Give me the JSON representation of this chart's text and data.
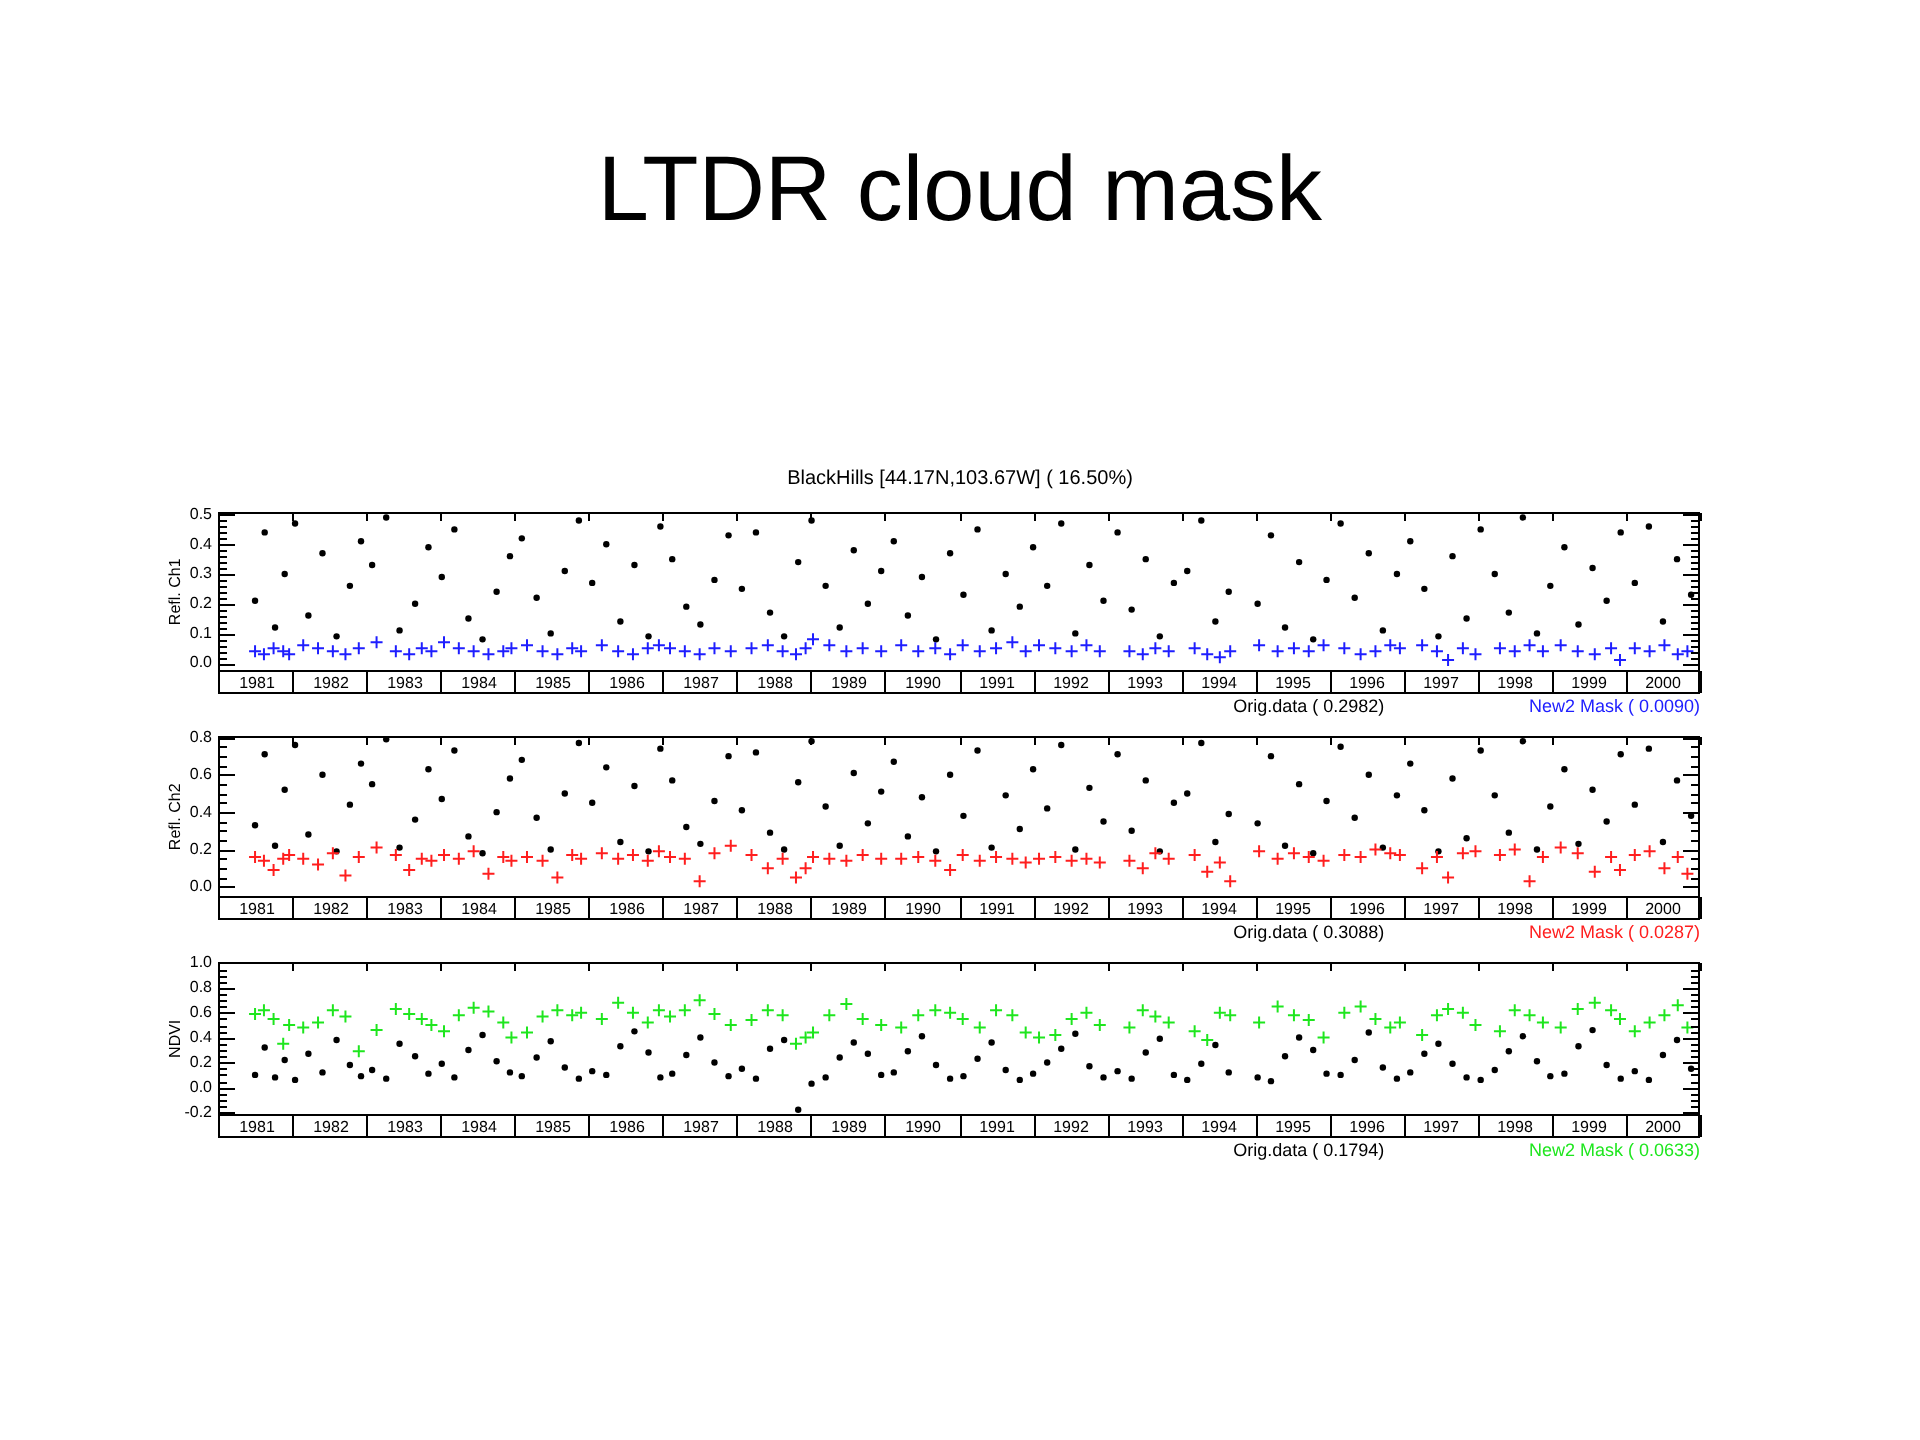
{
  "chart_data": [
    {
      "type": "scatter",
      "title": "LTDR cloud mask",
      "subtitle": "BlackHills [44.17N,103.67W] ( 16.50%)",
      "ylabel": "Refl. Ch1",
      "legend": "bottom",
      "xlim": [
        1981,
        2001
      ],
      "xticks": [
        {
          "value": 1981,
          "label": null
        },
        {
          "value": 1981.5,
          "label": "1981"
        },
        {
          "value": 1982,
          "label": null
        },
        {
          "value": 1982.5,
          "label": "1982"
        },
        {
          "value": 1983,
          "label": null
        },
        {
          "value": 1983.5,
          "label": "1983"
        },
        {
          "value": 1984,
          "label": null
        },
        {
          "value": 1984.5,
          "label": "1984"
        },
        {
          "value": 1985,
          "label": null
        },
        {
          "value": 1985.5,
          "label": "1985"
        },
        {
          "value": 1986,
          "label": null
        },
        {
          "value": 1986.5,
          "label": "1986"
        },
        {
          "value": 1987,
          "label": null
        },
        {
          "value": 1987.5,
          "label": "1987"
        },
        {
          "value": 1988,
          "label": null
        },
        {
          "value": 1988.5,
          "label": "1988"
        },
        {
          "value": 1989,
          "label": null
        },
        {
          "value": 1989.5,
          "label": "1989"
        },
        {
          "value": 1990,
          "label": null
        },
        {
          "value": 1990.5,
          "label": "1990"
        },
        {
          "value": 1991,
          "label": null
        },
        {
          "value": 1991.5,
          "label": "1991"
        },
        {
          "value": 1992,
          "label": null
        },
        {
          "value": 1992.5,
          "label": "1992"
        },
        {
          "value": 1993,
          "label": null
        },
        {
          "value": 1993.5,
          "label": "1993"
        },
        {
          "value": 1994,
          "label": null
        },
        {
          "value": 1994.5,
          "label": "1994"
        },
        {
          "value": 1995,
          "label": null
        },
        {
          "value": 1995.5,
          "label": "1995"
        },
        {
          "value": 1996,
          "label": null
        },
        {
          "value": 1996.5,
          "label": "1996"
        },
        {
          "value": 1997,
          "label": null
        },
        {
          "value": 1997.5,
          "label": "1997"
        },
        {
          "value": 1998,
          "label": null
        },
        {
          "value": 1998.5,
          "label": "1998"
        },
        {
          "value": 1999,
          "label": null
        },
        {
          "value": 1999.5,
          "label": "1999"
        },
        {
          "value": 2000,
          "label": null
        },
        {
          "value": 2000.5,
          "label": "2000"
        },
        {
          "value": 2001,
          "label": null
        }
      ],
      "ylim": [
        -0.03,
        0.51
      ],
      "yticks": [
        {
          "value": 0,
          "label": "0.0"
        },
        {
          "value": 0.02,
          "label": null
        },
        {
          "value": 0.04,
          "label": null
        },
        {
          "value": 0.06,
          "label": null
        },
        {
          "value": 0.08,
          "label": null
        },
        0.1,
        {
          "value": 0.12,
          "label": null
        },
        {
          "value": 0.14,
          "label": null
        },
        {
          "value": 0.16,
          "label": null
        },
        {
          "value": 0.18,
          "label": null
        },
        0.2,
        {
          "value": 0.22,
          "label": null
        },
        {
          "value": 0.24,
          "label": null
        },
        {
          "value": 0.26,
          "label": null
        },
        {
          "value": 0.28,
          "label": null
        },
        0.3,
        {
          "value": 0.32,
          "label": null
        },
        {
          "value": 0.34,
          "label": null
        },
        {
          "value": 0.36,
          "label": null
        },
        {
          "value": 0.38,
          "label": null
        },
        0.4,
        {
          "value": 0.42,
          "label": null
        },
        {
          "value": 0.44,
          "label": null
        },
        {
          "value": 0.46,
          "label": null
        },
        {
          "value": 0.48,
          "label": null
        },
        0.5
      ],
      "series": [
        {
          "name": "Orig.data ( 0.2982)",
          "color": "#000000",
          "marker": "circle",
          "x": [
            1981.5,
            1981.63,
            1981.77,
            1981.9,
            1982.04,
            1982.22,
            1982.41,
            1982.6,
            1982.78,
            1982.93,
            1983.08,
            1983.27,
            1983.45,
            1983.66,
            1983.84,
            1984.02,
            1984.19,
            1984.38,
            1984.57,
            1984.76,
            1984.94,
            1985.1,
            1985.3,
            1985.49,
            1985.68,
            1985.87,
            1986.05,
            1986.24,
            1986.43,
            1986.62,
            1986.81,
            1986.97,
            1987.13,
            1987.32,
            1987.51,
            1987.7,
            1987.89,
            1988.07,
            1988.26,
            1988.45,
            1988.64,
            1988.83,
            1989.01,
            1989.2,
            1989.39,
            1989.58,
            1989.77,
            1989.95,
            1990.12,
            1990.31,
            1990.5,
            1990.69,
            1990.88,
            1991.06,
            1991.25,
            1991.44,
            1991.63,
            1991.82,
            1992.0,
            1992.19,
            1992.38,
            1992.57,
            1992.76,
            1992.95,
            1993.14,
            1993.33,
            1993.52,
            1993.71,
            1993.9,
            1994.08,
            1994.27,
            1994.46,
            1994.64,
            1995.03,
            1995.21,
            1995.4,
            1995.59,
            1995.78,
            1995.96,
            1996.15,
            1996.34,
            1996.53,
            1996.72,
            1996.91,
            1997.09,
            1997.28,
            1997.47,
            1997.66,
            1997.85,
            1998.04,
            1998.23,
            1998.42,
            1998.61,
            1998.8,
            1998.98,
            1999.17,
            1999.36,
            1999.55,
            1999.74,
            1999.93,
            2000.12,
            2000.31,
            2000.5,
            2000.69,
            2000.88
          ],
          "values": [
            0.21,
            0.44,
            0.12,
            0.3,
            0.47,
            0.16,
            0.37,
            0.09,
            0.26,
            0.41,
            0.33,
            0.49,
            0.11,
            0.2,
            0.39,
            0.29,
            0.45,
            0.15,
            0.08,
            0.24,
            0.36,
            0.42,
            0.22,
            0.1,
            0.31,
            0.48,
            0.27,
            0.4,
            0.14,
            0.33,
            0.09,
            0.46,
            0.35,
            0.19,
            0.13,
            0.28,
            0.43,
            0.25,
            0.44,
            0.17,
            0.09,
            0.34,
            0.48,
            0.26,
            0.12,
            0.38,
            0.2,
            0.31,
            0.41,
            0.16,
            0.29,
            0.08,
            0.37,
            0.23,
            0.45,
            0.11,
            0.3,
            0.19,
            0.39,
            0.26,
            0.47,
            0.1,
            0.33,
            0.21,
            0.44,
            0.18,
            0.35,
            0.09,
            0.27,
            0.31,
            0.48,
            0.14,
            0.24,
            0.2,
            0.43,
            0.12,
            0.34,
            0.08,
            0.28,
            0.47,
            0.22,
            0.37,
            0.11,
            0.3,
            0.41,
            0.25,
            0.09,
            0.36,
            0.15,
            0.45,
            0.3,
            0.17,
            0.49,
            0.1,
            0.26,
            0.39,
            0.13,
            0.32,
            0.21,
            0.44,
            0.27,
            0.46,
            0.14,
            0.35,
            0.23
          ]
        },
        {
          "name": "New2 Mask ( 0.0090)",
          "color": "#1e1eff",
          "marker": "cross",
          "x": [
            1981.5,
            1981.62,
            1981.75,
            1981.88,
            1981.96,
            1982.15,
            1982.35,
            1982.55,
            1982.72,
            1982.9,
            1983.14,
            1983.4,
            1983.58,
            1983.75,
            1983.88,
            1984.05,
            1984.25,
            1984.45,
            1984.65,
            1984.85,
            1984.96,
            1985.17,
            1985.38,
            1985.58,
            1985.78,
            1985.9,
            1986.18,
            1986.4,
            1986.6,
            1986.8,
            1986.95,
            1987.1,
            1987.3,
            1987.5,
            1987.7,
            1987.92,
            1988.2,
            1988.42,
            1988.62,
            1988.8,
            1988.93,
            1989.03,
            1989.25,
            1989.48,
            1989.7,
            1989.95,
            1990.22,
            1990.45,
            1990.68,
            1990.88,
            1991.05,
            1991.28,
            1991.5,
            1991.72,
            1991.9,
            1992.08,
            1992.3,
            1992.52,
            1992.72,
            1992.9,
            1993.3,
            1993.48,
            1993.65,
            1993.83,
            1994.18,
            1994.35,
            1994.52,
            1994.66,
            1995.05,
            1995.3,
            1995.52,
            1995.72,
            1995.92,
            1996.2,
            1996.42,
            1996.62,
            1996.82,
            1996.95,
            1997.25,
            1997.45,
            1997.6,
            1997.8,
            1997.97,
            1998.3,
            1998.5,
            1998.7,
            1998.88,
            1999.12,
            1999.35,
            1999.58,
            1999.8,
            1999.92,
            2000.12,
            2000.32,
            2000.52,
            2000.7,
            2000.83
          ],
          "values": [
            0.04,
            0.03,
            0.05,
            0.04,
            0.03,
            0.06,
            0.05,
            0.04,
            0.03,
            0.05,
            0.07,
            0.04,
            0.03,
            0.05,
            0.04,
            0.07,
            0.05,
            0.04,
            0.03,
            0.04,
            0.05,
            0.06,
            0.04,
            0.03,
            0.05,
            0.04,
            0.06,
            0.04,
            0.03,
            0.05,
            0.06,
            0.05,
            0.04,
            0.03,
            0.05,
            0.04,
            0.05,
            0.06,
            0.04,
            0.03,
            0.05,
            0.08,
            0.06,
            0.04,
            0.05,
            0.04,
            0.06,
            0.04,
            0.05,
            0.03,
            0.06,
            0.04,
            0.05,
            0.07,
            0.04,
            0.06,
            0.05,
            0.04,
            0.06,
            0.04,
            0.04,
            0.03,
            0.05,
            0.04,
            0.05,
            0.03,
            0.02,
            0.04,
            0.06,
            0.04,
            0.05,
            0.04,
            0.06,
            0.05,
            0.03,
            0.04,
            0.06,
            0.05,
            0.06,
            0.04,
            0.01,
            0.05,
            0.03,
            0.05,
            0.04,
            0.06,
            0.04,
            0.06,
            0.04,
            0.03,
            0.05,
            0.01,
            0.05,
            0.04,
            0.06,
            0.03,
            0.04
          ]
        }
      ]
    },
    {
      "type": "scatter",
      "ylabel": "Refl. Ch2",
      "legend": "bottom",
      "xlim": [
        1981,
        2001
      ],
      "xticks": [
        {
          "value": 1981,
          "label": null
        },
        {
          "value": 1981.5,
          "label": "1981"
        },
        {
          "value": 1982,
          "label": null
        },
        {
          "value": 1982.5,
          "label": "1982"
        },
        {
          "value": 1983,
          "label": null
        },
        {
          "value": 1983.5,
          "label": "1983"
        },
        {
          "value": 1984,
          "label": null
        },
        {
          "value": 1984.5,
          "label": "1984"
        },
        {
          "value": 1985,
          "label": null
        },
        {
          "value": 1985.5,
          "label": "1985"
        },
        {
          "value": 1986,
          "label": null
        },
        {
          "value": 1986.5,
          "label": "1986"
        },
        {
          "value": 1987,
          "label": null
        },
        {
          "value": 1987.5,
          "label": "1987"
        },
        {
          "value": 1988,
          "label": null
        },
        {
          "value": 1988.5,
          "label": "1988"
        },
        {
          "value": 1989,
          "label": null
        },
        {
          "value": 1989.5,
          "label": "1989"
        },
        {
          "value": 1990,
          "label": null
        },
        {
          "value": 1990.5,
          "label": "1990"
        },
        {
          "value": 1991,
          "label": null
        },
        {
          "value": 1991.5,
          "label": "1991"
        },
        {
          "value": 1992,
          "label": null
        },
        {
          "value": 1992.5,
          "label": "1992"
        },
        {
          "value": 1993,
          "label": null
        },
        {
          "value": 1993.5,
          "label": "1993"
        },
        {
          "value": 1994,
          "label": null
        },
        {
          "value": 1994.5,
          "label": "1994"
        },
        {
          "value": 1995,
          "label": null
        },
        {
          "value": 1995.5,
          "label": "1995"
        },
        {
          "value": 1996,
          "label": null
        },
        {
          "value": 1996.5,
          "label": "1996"
        },
        {
          "value": 1997,
          "label": null
        },
        {
          "value": 1997.5,
          "label": "1997"
        },
        {
          "value": 1998,
          "label": null
        },
        {
          "value": 1998.5,
          "label": "1998"
        },
        {
          "value": 1999,
          "label": null
        },
        {
          "value": 1999.5,
          "label": "1999"
        },
        {
          "value": 2000,
          "label": null
        },
        {
          "value": 2000.5,
          "label": "2000"
        },
        {
          "value": 2001,
          "label": null
        }
      ],
      "ylim": [
        -0.06,
        0.81
      ],
      "yticks": [
        {
          "value": 0,
          "label": "0.0"
        },
        {
          "value": 0.05,
          "label": null
        },
        {
          "value": 0.1,
          "label": null
        },
        {
          "value": 0.15,
          "label": null
        },
        0.2,
        {
          "value": 0.25,
          "label": null
        },
        {
          "value": 0.3,
          "label": null
        },
        {
          "value": 0.35,
          "label": null
        },
        0.4,
        {
          "value": 0.45,
          "label": null
        },
        {
          "value": 0.5,
          "label": null
        },
        {
          "value": 0.55,
          "label": null
        },
        0.6,
        {
          "value": 0.65,
          "label": null
        },
        {
          "value": 0.7,
          "label": null
        },
        {
          "value": 0.75,
          "label": null
        },
        0.8
      ],
      "series": [
        {
          "name": "Orig.data ( 0.3088)",
          "color": "#000000",
          "marker": "circle",
          "x": [
            1981.5,
            1981.63,
            1981.77,
            1981.9,
            1982.04,
            1982.22,
            1982.41,
            1982.6,
            1982.78,
            1982.93,
            1983.08,
            1983.27,
            1983.45,
            1983.66,
            1983.84,
            1984.02,
            1984.19,
            1984.38,
            1984.57,
            1984.76,
            1984.94,
            1985.1,
            1985.3,
            1985.49,
            1985.68,
            1985.87,
            1986.05,
            1986.24,
            1986.43,
            1986.62,
            1986.81,
            1986.97,
            1987.13,
            1987.32,
            1987.51,
            1987.7,
            1987.89,
            1988.07,
            1988.26,
            1988.45,
            1988.64,
            1988.83,
            1989.01,
            1989.2,
            1989.39,
            1989.58,
            1989.77,
            1989.95,
            1990.12,
            1990.31,
            1990.5,
            1990.69,
            1990.88,
            1991.06,
            1991.25,
            1991.44,
            1991.63,
            1991.82,
            1992.0,
            1992.19,
            1992.38,
            1992.57,
            1992.76,
            1992.95,
            1993.14,
            1993.33,
            1993.52,
            1993.71,
            1993.9,
            1994.08,
            1994.27,
            1994.46,
            1994.64,
            1995.03,
            1995.21,
            1995.4,
            1995.59,
            1995.78,
            1995.96,
            1996.15,
            1996.34,
            1996.53,
            1996.72,
            1996.91,
            1997.09,
            1997.28,
            1997.47,
            1997.66,
            1997.85,
            1998.04,
            1998.23,
            1998.42,
            1998.61,
            1998.8,
            1998.98,
            1999.17,
            1999.36,
            1999.55,
            1999.74,
            1999.93,
            2000.12,
            2000.31,
            2000.5,
            2000.69,
            2000.88
          ],
          "values": [
            0.33,
            0.71,
            0.22,
            0.52,
            0.76,
            0.28,
            0.6,
            0.19,
            0.44,
            0.66,
            0.55,
            0.79,
            0.21,
            0.36,
            0.63,
            0.47,
            0.73,
            0.27,
            0.18,
            0.4,
            0.58,
            0.68,
            0.37,
            0.2,
            0.5,
            0.77,
            0.45,
            0.64,
            0.24,
            0.54,
            0.19,
            0.74,
            0.57,
            0.32,
            0.23,
            0.46,
            0.7,
            0.41,
            0.72,
            0.29,
            0.2,
            0.56,
            0.78,
            0.43,
            0.22,
            0.61,
            0.34,
            0.51,
            0.67,
            0.27,
            0.48,
            0.19,
            0.6,
            0.38,
            0.73,
            0.21,
            0.49,
            0.31,
            0.63,
            0.42,
            0.76,
            0.2,
            0.53,
            0.35,
            0.71,
            0.3,
            0.57,
            0.19,
            0.45,
            0.5,
            0.77,
            0.24,
            0.39,
            0.34,
            0.7,
            0.22,
            0.55,
            0.18,
            0.46,
            0.75,
            0.37,
            0.6,
            0.21,
            0.49,
            0.66,
            0.41,
            0.19,
            0.58,
            0.26,
            0.73,
            0.49,
            0.29,
            0.78,
            0.2,
            0.43,
            0.63,
            0.23,
            0.52,
            0.35,
            0.71,
            0.44,
            0.74,
            0.24,
            0.57,
            0.38
          ]
        },
        {
          "name": "New2 Mask ( 0.0287)",
          "color": "#ff1e1e",
          "marker": "cross",
          "x": [
            1981.5,
            1981.62,
            1981.75,
            1981.88,
            1981.96,
            1982.15,
            1982.35,
            1982.55,
            1982.72,
            1982.9,
            1983.14,
            1983.4,
            1983.58,
            1983.75,
            1983.88,
            1984.05,
            1984.25,
            1984.45,
            1984.65,
            1984.85,
            1984.96,
            1985.17,
            1985.38,
            1985.58,
            1985.78,
            1985.9,
            1986.18,
            1986.4,
            1986.6,
            1986.8,
            1986.95,
            1987.1,
            1987.3,
            1987.5,
            1987.7,
            1987.92,
            1988.2,
            1988.42,
            1988.62,
            1988.8,
            1988.93,
            1989.03,
            1989.25,
            1989.48,
            1989.7,
            1989.95,
            1990.22,
            1990.45,
            1990.68,
            1990.88,
            1991.05,
            1991.28,
            1991.5,
            1991.72,
            1991.9,
            1992.08,
            1992.3,
            1992.52,
            1992.72,
            1992.9,
            1993.3,
            1993.48,
            1993.65,
            1993.83,
            1994.18,
            1994.35,
            1994.52,
            1994.66,
            1995.05,
            1995.3,
            1995.52,
            1995.72,
            1995.92,
            1996.2,
            1996.42,
            1996.62,
            1996.82,
            1996.95,
            1997.25,
            1997.45,
            1997.6,
            1997.8,
            1997.97,
            1998.3,
            1998.5,
            1998.7,
            1998.88,
            1999.12,
            1999.35,
            1999.58,
            1999.8,
            1999.92,
            2000.12,
            2000.32,
            2000.52,
            2000.7,
            2000.83
          ],
          "values": [
            0.16,
            0.14,
            0.09,
            0.15,
            0.17,
            0.15,
            0.12,
            0.18,
            0.06,
            0.16,
            0.21,
            0.17,
            0.09,
            0.15,
            0.14,
            0.17,
            0.15,
            0.19,
            0.07,
            0.16,
            0.14,
            0.16,
            0.14,
            0.05,
            0.17,
            0.15,
            0.18,
            0.15,
            0.17,
            0.14,
            0.19,
            0.16,
            0.15,
            0.03,
            0.18,
            0.22,
            0.17,
            0.1,
            0.15,
            0.05,
            0.1,
            0.16,
            0.15,
            0.14,
            0.17,
            0.15,
            0.15,
            0.16,
            0.14,
            0.09,
            0.17,
            0.14,
            0.16,
            0.15,
            0.13,
            0.15,
            0.16,
            0.14,
            0.15,
            0.13,
            0.14,
            0.1,
            0.18,
            0.15,
            0.17,
            0.08,
            0.13,
            0.03,
            0.19,
            0.15,
            0.18,
            0.16,
            0.14,
            0.17,
            0.16,
            0.2,
            0.18,
            0.17,
            0.1,
            0.16,
            0.05,
            0.18,
            0.19,
            0.17,
            0.2,
            0.03,
            0.16,
            0.21,
            0.18,
            0.08,
            0.16,
            0.09,
            0.17,
            0.19,
            0.1,
            0.16,
            0.07
          ]
        }
      ]
    },
    {
      "type": "scatter",
      "ylabel": "NDVI",
      "legend": "bottom",
      "xlim": [
        1981,
        2001
      ],
      "xticks": [
        {
          "value": 1981,
          "label": null
        },
        {
          "value": 1981.5,
          "label": "1981"
        },
        {
          "value": 1982,
          "label": null
        },
        {
          "value": 1982.5,
          "label": "1982"
        },
        {
          "value": 1983,
          "label": null
        },
        {
          "value": 1983.5,
          "label": "1983"
        },
        {
          "value": 1984,
          "label": null
        },
        {
          "value": 1984.5,
          "label": "1984"
        },
        {
          "value": 1985,
          "label": null
        },
        {
          "value": 1985.5,
          "label": "1985"
        },
        {
          "value": 1986,
          "label": null
        },
        {
          "value": 1986.5,
          "label": "1986"
        },
        {
          "value": 1987,
          "label": null
        },
        {
          "value": 1987.5,
          "label": "1987"
        },
        {
          "value": 1988,
          "label": null
        },
        {
          "value": 1988.5,
          "label": "1988"
        },
        {
          "value": 1989,
          "label": null
        },
        {
          "value": 1989.5,
          "label": "1989"
        },
        {
          "value": 1990,
          "label": null
        },
        {
          "value": 1990.5,
          "label": "1990"
        },
        {
          "value": 1991,
          "label": null
        },
        {
          "value": 1991.5,
          "label": "1991"
        },
        {
          "value": 1992,
          "label": null
        },
        {
          "value": 1992.5,
          "label": "1992"
        },
        {
          "value": 1993,
          "label": null
        },
        {
          "value": 1993.5,
          "label": "1993"
        },
        {
          "value": 1994,
          "label": null
        },
        {
          "value": 1994.5,
          "label": "1994"
        },
        {
          "value": 1995,
          "label": null
        },
        {
          "value": 1995.5,
          "label": "1995"
        },
        {
          "value": 1996,
          "label": null
        },
        {
          "value": 1996.5,
          "label": "1996"
        },
        {
          "value": 1997,
          "label": null
        },
        {
          "value": 1997.5,
          "label": "1997"
        },
        {
          "value": 1998,
          "label": null
        },
        {
          "value": 1998.5,
          "label": "1998"
        },
        {
          "value": 1999,
          "label": null
        },
        {
          "value": 1999.5,
          "label": "1999"
        },
        {
          "value": 2000,
          "label": null
        },
        {
          "value": 2000.5,
          "label": "2000"
        },
        {
          "value": 2001,
          "label": null
        }
      ],
      "ylim": [
        -0.23,
        1.01
      ],
      "yticks": [
        -0.2,
        {
          "value": -0.15,
          "label": null
        },
        {
          "value": -0.1,
          "label": null
        },
        {
          "value": -0.05,
          "label": null
        },
        {
          "value": 0,
          "label": "0.0"
        },
        {
          "value": 0.05,
          "label": null
        },
        {
          "value": 0.1,
          "label": null
        },
        {
          "value": 0.15,
          "label": null
        },
        0.2,
        {
          "value": 0.25,
          "label": null
        },
        {
          "value": 0.3,
          "label": null
        },
        {
          "value": 0.35,
          "label": null
        },
        0.4,
        {
          "value": 0.45,
          "label": null
        },
        {
          "value": 0.5,
          "label": null
        },
        {
          "value": 0.55,
          "label": null
        },
        0.6,
        {
          "value": 0.65,
          "label": null
        },
        {
          "value": 0.7,
          "label": null
        },
        {
          "value": 0.75,
          "label": null
        },
        0.8,
        {
          "value": 0.85,
          "label": null
        },
        {
          "value": 0.9,
          "label": null
        },
        {
          "value": 0.95,
          "label": null
        },
        {
          "value": 1,
          "label": "1.0"
        }
      ],
      "series": [
        {
          "name": "Orig.data ( 0.1794)",
          "color": "#000000",
          "marker": "circle",
          "x": [
            1981.5,
            1981.63,
            1981.77,
            1981.9,
            1982.04,
            1982.22,
            1982.41,
            1982.6,
            1982.78,
            1982.93,
            1983.08,
            1983.27,
            1983.45,
            1983.66,
            1983.84,
            1984.02,
            1984.19,
            1984.38,
            1984.57,
            1984.76,
            1984.94,
            1985.1,
            1985.3,
            1985.49,
            1985.68,
            1985.87,
            1986.05,
            1986.24,
            1986.43,
            1986.62,
            1986.81,
            1986.97,
            1987.13,
            1987.32,
            1987.51,
            1987.7,
            1987.89,
            1988.07,
            1988.26,
            1988.45,
            1988.64,
            1988.83,
            1989.01,
            1989.2,
            1989.39,
            1989.58,
            1989.77,
            1989.95,
            1990.12,
            1990.31,
            1990.5,
            1990.69,
            1990.88,
            1991.06,
            1991.25,
            1991.44,
            1991.63,
            1991.82,
            1992.0,
            1992.19,
            1992.38,
            1992.57,
            1992.76,
            1992.95,
            1993.14,
            1993.33,
            1993.52,
            1993.71,
            1993.9,
            1994.08,
            1994.27,
            1994.46,
            1994.64,
            1995.03,
            1995.21,
            1995.4,
            1995.59,
            1995.78,
            1995.96,
            1996.15,
            1996.34,
            1996.53,
            1996.72,
            1996.91,
            1997.09,
            1997.28,
            1997.47,
            1997.66,
            1997.85,
            1998.04,
            1998.23,
            1998.42,
            1998.61,
            1998.8,
            1998.98,
            1999.17,
            1999.36,
            1999.55,
            1999.74,
            1999.93,
            2000.12,
            2000.31,
            2000.5,
            2000.69,
            2000.88
          ],
          "values": [
            0.1,
            0.32,
            0.08,
            0.22,
            0.06,
            0.27,
            0.12,
            0.38,
            0.18,
            0.09,
            0.14,
            0.07,
            0.35,
            0.25,
            0.11,
            0.19,
            0.08,
            0.3,
            0.42,
            0.21,
            0.12,
            0.09,
            0.24,
            0.37,
            0.16,
            0.07,
            0.13,
            0.1,
            0.33,
            0.45,
            0.28,
            0.08,
            0.11,
            0.26,
            0.4,
            0.2,
            0.09,
            0.15,
            0.07,
            0.31,
            0.38,
            -0.18,
            0.03,
            0.08,
            0.24,
            0.36,
            0.27,
            0.1,
            0.12,
            0.29,
            0.41,
            0.18,
            0.07,
            0.09,
            0.23,
            0.36,
            0.14,
            0.06,
            0.11,
            0.2,
            0.31,
            0.43,
            0.17,
            0.08,
            0.13,
            0.07,
            0.28,
            0.39,
            0.1,
            0.06,
            0.19,
            0.34,
            0.12,
            0.08,
            0.05,
            0.25,
            0.4,
            0.3,
            0.11,
            0.1,
            0.22,
            0.44,
            0.16,
            0.07,
            0.12,
            0.27,
            0.35,
            0.19,
            0.08,
            0.06,
            0.14,
            0.29,
            0.41,
            0.21,
            0.09,
            0.11,
            0.33,
            0.46,
            0.18,
            0.07,
            0.13,
            0.06,
            0.26,
            0.38,
            0.15
          ]
        },
        {
          "name": "New2 Mask ( 0.0633)",
          "color": "#1ee61e",
          "marker": "cross",
          "x": [
            1981.5,
            1981.62,
            1981.75,
            1981.88,
            1981.96,
            1982.15,
            1982.35,
            1982.55,
            1982.72,
            1982.9,
            1983.14,
            1983.4,
            1983.58,
            1983.75,
            1983.88,
            1984.05,
            1984.25,
            1984.45,
            1984.65,
            1984.85,
            1984.96,
            1985.17,
            1985.38,
            1985.58,
            1985.78,
            1985.9,
            1986.18,
            1986.4,
            1986.6,
            1986.8,
            1986.95,
            1987.1,
            1987.3,
            1987.5,
            1987.7,
            1987.92,
            1988.2,
            1988.42,
            1988.62,
            1988.8,
            1988.93,
            1989.03,
            1989.25,
            1989.48,
            1989.7,
            1989.95,
            1990.22,
            1990.45,
            1990.68,
            1990.88,
            1991.05,
            1991.28,
            1991.5,
            1991.72,
            1991.9,
            1992.08,
            1992.3,
            1992.52,
            1992.72,
            1992.9,
            1993.3,
            1993.48,
            1993.65,
            1993.83,
            1994.18,
            1994.35,
            1994.52,
            1994.66,
            1995.05,
            1995.3,
            1995.52,
            1995.72,
            1995.92,
            1996.2,
            1996.42,
            1996.62,
            1996.82,
            1996.95,
            1997.25,
            1997.45,
            1997.6,
            1997.8,
            1997.97,
            1998.3,
            1998.5,
            1998.7,
            1998.88,
            1999.12,
            1999.35,
            1999.58,
            1999.8,
            1999.92,
            2000.12,
            2000.32,
            2000.52,
            2000.7,
            2000.83
          ],
          "values": [
            0.59,
            0.62,
            0.55,
            0.35,
            0.5,
            0.48,
            0.52,
            0.62,
            0.57,
            0.29,
            0.46,
            0.63,
            0.59,
            0.55,
            0.5,
            0.45,
            0.58,
            0.64,
            0.61,
            0.52,
            0.4,
            0.44,
            0.57,
            0.62,
            0.58,
            0.6,
            0.55,
            0.68,
            0.6,
            0.52,
            0.62,
            0.57,
            0.62,
            0.7,
            0.59,
            0.5,
            0.54,
            0.62,
            0.58,
            0.35,
            0.4,
            0.44,
            0.58,
            0.67,
            0.55,
            0.5,
            0.48,
            0.58,
            0.62,
            0.6,
            0.55,
            0.48,
            0.62,
            0.58,
            0.44,
            0.4,
            0.42,
            0.55,
            0.6,
            0.5,
            0.48,
            0.62,
            0.57,
            0.52,
            0.45,
            0.38,
            0.6,
            0.58,
            0.52,
            0.65,
            0.58,
            0.54,
            0.4,
            0.6,
            0.65,
            0.55,
            0.48,
            0.52,
            0.42,
            0.58,
            0.63,
            0.6,
            0.5,
            0.45,
            0.62,
            0.58,
            0.52,
            0.48,
            0.63,
            0.68,
            0.62,
            0.55,
            0.45,
            0.52,
            0.58,
            0.66,
            0.48
          ]
        }
      ]
    }
  ]
}
